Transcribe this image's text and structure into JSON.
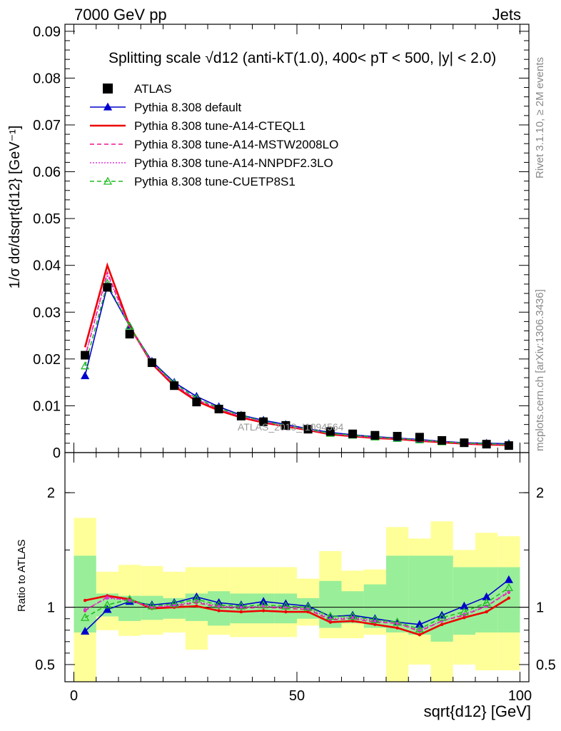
{
  "header": {
    "left": "7000 GeV pp",
    "right": "Jets"
  },
  "side_labels": {
    "rivet": "Rivet 3.1.10, ≥ 2M events",
    "mcplots": "mcplots.cern.ch [arXiv:1306.3436]"
  },
  "watermark": "ATLAS_2013_I1094564",
  "chart_data": [
    {
      "type": "line",
      "panel": "main",
      "title": "Splitting scale √d12 (anti-kT(1.0), 400< pT < 500, |y| < 2.0)",
      "ylabel": "1/σ dσ/dsqrt{d12} [GeV⁻¹]",
      "xlabel": "sqrt{d12} [GeV]",
      "xlim": [
        -2,
        102
      ],
      "ylim": [
        0,
        0.0915
      ],
      "yticks": [
        0,
        0.01,
        0.02,
        0.03,
        0.04,
        0.05,
        0.06,
        0.07,
        0.08,
        0.09
      ],
      "yticklabels": [
        "0",
        "0.01",
        "0.02",
        "0.03",
        "0.04",
        "0.05",
        "0.06",
        "0.07",
        "0.08",
        "0.09"
      ],
      "x": [
        2.5,
        7.5,
        12.5,
        17.5,
        22.5,
        27.5,
        32.5,
        37.5,
        42.5,
        47.5,
        52.5,
        57.5,
        62.5,
        67.5,
        72.5,
        77.5,
        82.5,
        87.5,
        92.5,
        97.5
      ],
      "legend_position": "top-left",
      "series": [
        {
          "name": "ATLAS",
          "color": "#000000",
          "style": "data",
          "values": [
            0.0208,
            0.0353,
            0.0253,
            0.0192,
            0.0143,
            0.0108,
            0.0093,
            0.0078,
            0.0066,
            0.0058,
            0.005,
            0.0045,
            0.004,
            0.0037,
            0.0035,
            0.0033,
            0.0026,
            0.0021,
            0.0018,
            0.0015
          ]
        },
        {
          "name": "Pythia 8.308 default",
          "color": "#0000cc",
          "style": "solid-triangle",
          "values": [
            0.0164,
            0.0356,
            0.027,
            0.0195,
            0.015,
            0.012,
            0.0098,
            0.008,
            0.0069,
            0.006,
            0.0051,
            0.0043,
            0.0038,
            0.0034,
            0.0031,
            0.0028,
            0.0024,
            0.0021,
            0.002,
            0.0019
          ]
        },
        {
          "name": "Pythia 8.308 tune-A14-CTEQL1",
          "color": "#ee0000",
          "style": "solid",
          "values": [
            0.0225,
            0.04,
            0.027,
            0.019,
            0.0142,
            0.011,
            0.009,
            0.0075,
            0.0064,
            0.0056,
            0.0048,
            0.0039,
            0.0035,
            0.0031,
            0.0029,
            0.0025,
            0.0022,
            0.0019,
            0.0017,
            0.0016
          ]
        },
        {
          "name": "Pythia 8.308 tune-A14-MSTW2008LO",
          "color": "#ee1493",
          "style": "dashed",
          "values": [
            0.0203,
            0.0385,
            0.0267,
            0.0191,
            0.0145,
            0.0113,
            0.0093,
            0.0077,
            0.0066,
            0.0057,
            0.0049,
            0.004,
            0.0036,
            0.0032,
            0.003,
            0.0026,
            0.0023,
            0.0019,
            0.0018,
            0.0017
          ]
        },
        {
          "name": "Pythia 8.308 tune-A14-NNPDF2.3LO",
          "color": "#dd33dd",
          "style": "dotted",
          "values": [
            0.0205,
            0.038,
            0.0268,
            0.0192,
            0.0146,
            0.0114,
            0.0094,
            0.0078,
            0.0066,
            0.0058,
            0.0049,
            0.0041,
            0.0036,
            0.0032,
            0.003,
            0.0026,
            0.0023,
            0.002,
            0.0018,
            0.0017
          ]
        },
        {
          "name": "Pythia 8.308 tune-CUETP8S1",
          "color": "#22bb22",
          "style": "dashed-triangle",
          "values": [
            0.0185,
            0.0362,
            0.027,
            0.0193,
            0.0148,
            0.0116,
            0.0095,
            0.0079,
            0.0067,
            0.0058,
            0.005,
            0.0041,
            0.0037,
            0.0033,
            0.003,
            0.0027,
            0.0023,
            0.002,
            0.0019,
            0.0017
          ]
        }
      ]
    },
    {
      "type": "line",
      "panel": "ratio",
      "ylabel": "Ratio to ATLAS",
      "xlabel": "sqrt{d12} [GeV]",
      "xlim": [
        -2,
        102
      ],
      "ylim": [
        0.35,
        2.35
      ],
      "xticks": [
        0,
        50,
        100
      ],
      "xticklabels": [
        "0",
        "50",
        "100"
      ],
      "yticks": [
        0.5,
        1,
        2
      ],
      "yticklabels": [
        "0.5",
        "1",
        "2"
      ],
      "bins": [
        [
          0,
          5
        ],
        [
          5,
          10
        ],
        [
          10,
          15
        ],
        [
          15,
          20
        ],
        [
          20,
          25
        ],
        [
          25,
          30
        ],
        [
          30,
          35
        ],
        [
          35,
          40
        ],
        [
          40,
          45
        ],
        [
          45,
          50
        ],
        [
          50,
          55
        ],
        [
          55,
          60
        ],
        [
          60,
          65
        ],
        [
          65,
          70
        ],
        [
          70,
          75
        ],
        [
          75,
          80
        ],
        [
          80,
          85
        ],
        [
          85,
          90
        ],
        [
          90,
          95
        ],
        [
          95,
          100
        ]
      ],
      "band_stat": [
        [
          0.78,
          1.45
        ],
        [
          0.92,
          1.12
        ],
        [
          0.88,
          1.1
        ],
        [
          0.89,
          1.1
        ],
        [
          0.9,
          1.08
        ],
        [
          0.88,
          1.12
        ],
        [
          0.84,
          1.14
        ],
        [
          0.86,
          1.12
        ],
        [
          0.86,
          1.12
        ],
        [
          0.86,
          1.12
        ],
        [
          0.9,
          1.08
        ],
        [
          0.82,
          1.23
        ],
        [
          0.86,
          1.14
        ],
        [
          0.82,
          1.2
        ],
        [
          0.78,
          1.45
        ],
        [
          0.76,
          1.45
        ],
        [
          0.7,
          1.45
        ],
        [
          0.76,
          1.35
        ],
        [
          0.78,
          1.35
        ],
        [
          0.78,
          1.35
        ]
      ],
      "band_syst": [
        [
          0.35,
          1.78
        ],
        [
          0.8,
          1.31
        ],
        [
          0.75,
          1.37
        ],
        [
          0.76,
          1.36
        ],
        [
          0.78,
          1.31
        ],
        [
          0.63,
          1.35
        ],
        [
          0.76,
          1.35
        ],
        [
          0.74,
          1.35
        ],
        [
          0.74,
          1.35
        ],
        [
          0.74,
          1.35
        ],
        [
          0.84,
          1.25
        ],
        [
          0.73,
          1.49
        ],
        [
          0.73,
          1.32
        ],
        [
          0.76,
          1.33
        ],
        [
          0.35,
          1.7
        ],
        [
          0.5,
          1.6
        ],
        [
          0.35,
          1.75
        ],
        [
          0.5,
          1.5
        ],
        [
          0.45,
          1.65
        ],
        [
          0.45,
          1.62
        ]
      ],
      "series": [
        {
          "name": "Pythia 8.308 default",
          "color": "#0000cc",
          "values": [
            0.79,
            0.98,
            1.05,
            1.02,
            1.04,
            1.09,
            1.04,
            1.02,
            1.05,
            1.03,
            1.01,
            0.92,
            0.93,
            0.9,
            0.87,
            0.85,
            0.93,
            1.01,
            1.09,
            1.24
          ]
        },
        {
          "name": "Pythia 8.308 tune-A14-CTEQL1",
          "color": "#ee0000",
          "values": [
            1.06,
            1.1,
            1.07,
            0.99,
            1.0,
            1.01,
            0.97,
            0.96,
            0.97,
            0.96,
            0.96,
            0.87,
            0.88,
            0.85,
            0.82,
            0.76,
            0.85,
            0.91,
            0.96,
            1.08
          ]
        },
        {
          "name": "Pythia 8.308 tune-A14-MSTW2008LO",
          "color": "#ee1493",
          "values": [
            0.97,
            1.09,
            1.06,
            1.0,
            1.01,
            1.04,
            1.0,
            0.99,
            1.0,
            0.99,
            0.98,
            0.89,
            0.9,
            0.87,
            0.86,
            0.79,
            0.88,
            0.93,
            1.01,
            1.13
          ]
        },
        {
          "name": "Pythia 8.308 tune-A14-NNPDF2.3LO",
          "color": "#dd33dd",
          "values": [
            0.98,
            1.08,
            1.06,
            1.0,
            1.02,
            1.05,
            1.01,
            1.0,
            1.01,
            1.0,
            0.99,
            0.9,
            0.91,
            0.88,
            0.86,
            0.8,
            0.88,
            0.94,
            1.01,
            1.14
          ]
        },
        {
          "name": "Pythia 8.308 tune-CUETP8S1",
          "color": "#22bb22",
          "values": [
            0.91,
            1.02,
            1.07,
            1.01,
            1.03,
            1.07,
            1.02,
            1.01,
            1.02,
            1.01,
            1.0,
            0.92,
            0.92,
            0.89,
            0.87,
            0.81,
            0.91,
            0.96,
            1.04,
            1.17
          ]
        }
      ]
    }
  ]
}
